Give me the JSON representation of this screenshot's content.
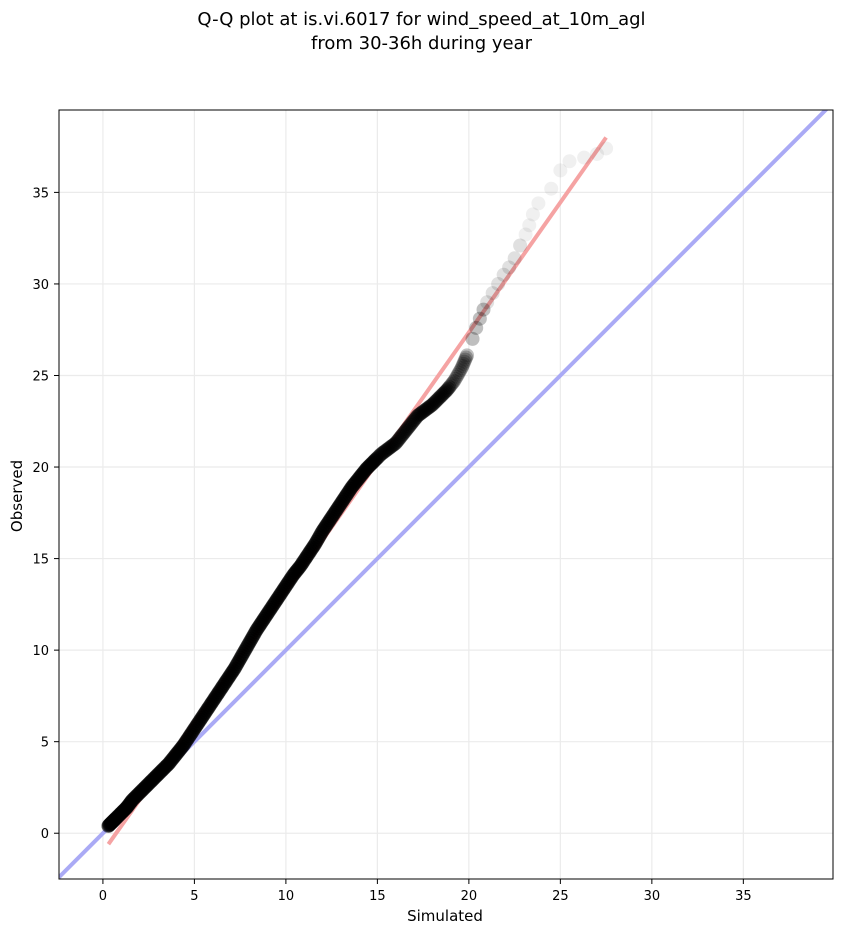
{
  "chart_data": {
    "type": "scatter",
    "title_line1": "Q-Q plot at is.vi.6017 for wind_speed_at_10m_agl",
    "title_line2": "from 30-36h during year",
    "xlabel": "Simulated",
    "ylabel": "Observed",
    "xlim": [
      -2.4,
      39.9
    ],
    "ylim": [
      -2.5,
      39.5
    ],
    "xticks": [
      0,
      5,
      10,
      15,
      20,
      25,
      30,
      35
    ],
    "yticks": [
      0,
      5,
      10,
      15,
      20,
      25,
      30,
      35
    ],
    "grid": true,
    "colors": {
      "identity_line": "#aaaaf5",
      "fit_line": "#f5a3a3",
      "points": "#000000",
      "frame": "#000000",
      "grid": "#ebebeb"
    },
    "identity_line": {
      "x": [
        -2.4,
        39.9
      ],
      "y": [
        -2.4,
        39.9
      ]
    },
    "fit_line": {
      "x": [
        0.3,
        27.5
      ],
      "y": [
        -0.6,
        38.0
      ]
    },
    "quantiles": {
      "x": [
        0.3,
        0.5,
        0.7,
        1.0,
        1.3,
        1.6,
        2.0,
        2.4,
        2.8,
        3.2,
        3.6,
        4.0,
        4.4,
        4.8,
        5.2,
        5.6,
        6.0,
        6.4,
        6.8,
        7.2,
        7.6,
        8.0,
        8.4,
        8.8,
        9.2,
        9.6,
        10.0,
        10.4,
        10.8,
        11.2,
        11.6,
        12.0,
        12.4,
        12.8,
        13.2,
        13.6,
        14.0,
        14.4,
        14.8,
        15.2,
        15.6,
        16.0,
        16.4,
        16.8,
        17.2,
        17.6,
        18.0,
        18.4,
        18.8,
        19.2,
        19.6,
        19.9,
        20.2,
        20.4,
        20.6,
        20.8,
        21.0,
        21.3,
        21.6,
        21.9,
        22.2,
        22.5,
        22.8,
        23.1,
        23.3,
        23.5,
        23.8,
        24.5,
        25.0,
        25.5,
        26.3,
        27.0,
        27.5
      ],
      "y": [
        0.4,
        0.6,
        0.8,
        1.1,
        1.4,
        1.8,
        2.2,
        2.6,
        3.0,
        3.4,
        3.8,
        4.3,
        4.8,
        5.4,
        6.0,
        6.6,
        7.2,
        7.8,
        8.4,
        9.0,
        9.7,
        10.4,
        11.1,
        11.7,
        12.3,
        12.9,
        13.5,
        14.1,
        14.6,
        15.2,
        15.8,
        16.5,
        17.1,
        17.7,
        18.3,
        18.9,
        19.4,
        19.9,
        20.3,
        20.7,
        21.0,
        21.3,
        21.8,
        22.3,
        22.8,
        23.1,
        23.4,
        23.8,
        24.2,
        24.7,
        25.4,
        26.1,
        27.0,
        27.6,
        28.1,
        28.6,
        29.0,
        29.5,
        30.0,
        30.5,
        30.9,
        31.4,
        32.1,
        32.7,
        33.2,
        33.8,
        34.4,
        35.2,
        36.2,
        36.7,
        36.9,
        37.1,
        37.4
      ]
    }
  }
}
